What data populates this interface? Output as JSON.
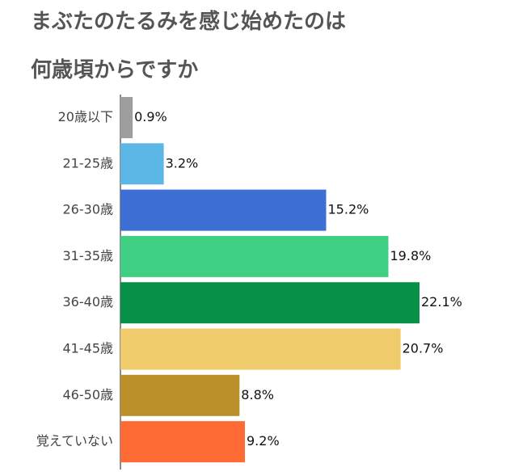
{
  "chart_data": {
    "type": "bar",
    "orientation": "horizontal",
    "title": [
      "まぶたのたるみを感じ始めたのは",
      "何歳頃からですか"
    ],
    "categories": [
      "20歳以下",
      "21-25歳",
      "26-30歳",
      "31-35歳",
      "36-40歳",
      "41-45歳",
      "46-50歳",
      "覚えていない"
    ],
    "values": [
      0.9,
      3.2,
      15.2,
      19.8,
      22.1,
      20.7,
      8.8,
      9.2
    ],
    "value_labels": [
      "0.9%",
      "3.2%",
      "15.2%",
      "19.8%",
      "22.1%",
      "20.7%",
      "8.8%",
      "9.2%"
    ],
    "colors": [
      "#9e9e9e",
      "#5db7e6",
      "#3d6fd4",
      "#3ecf82",
      "#079148",
      "#efcb6b",
      "#bb8f2a",
      "#ff6b35"
    ],
    "xlim": [
      0,
      22.1
    ],
    "grid": false,
    "legend": "none"
  }
}
